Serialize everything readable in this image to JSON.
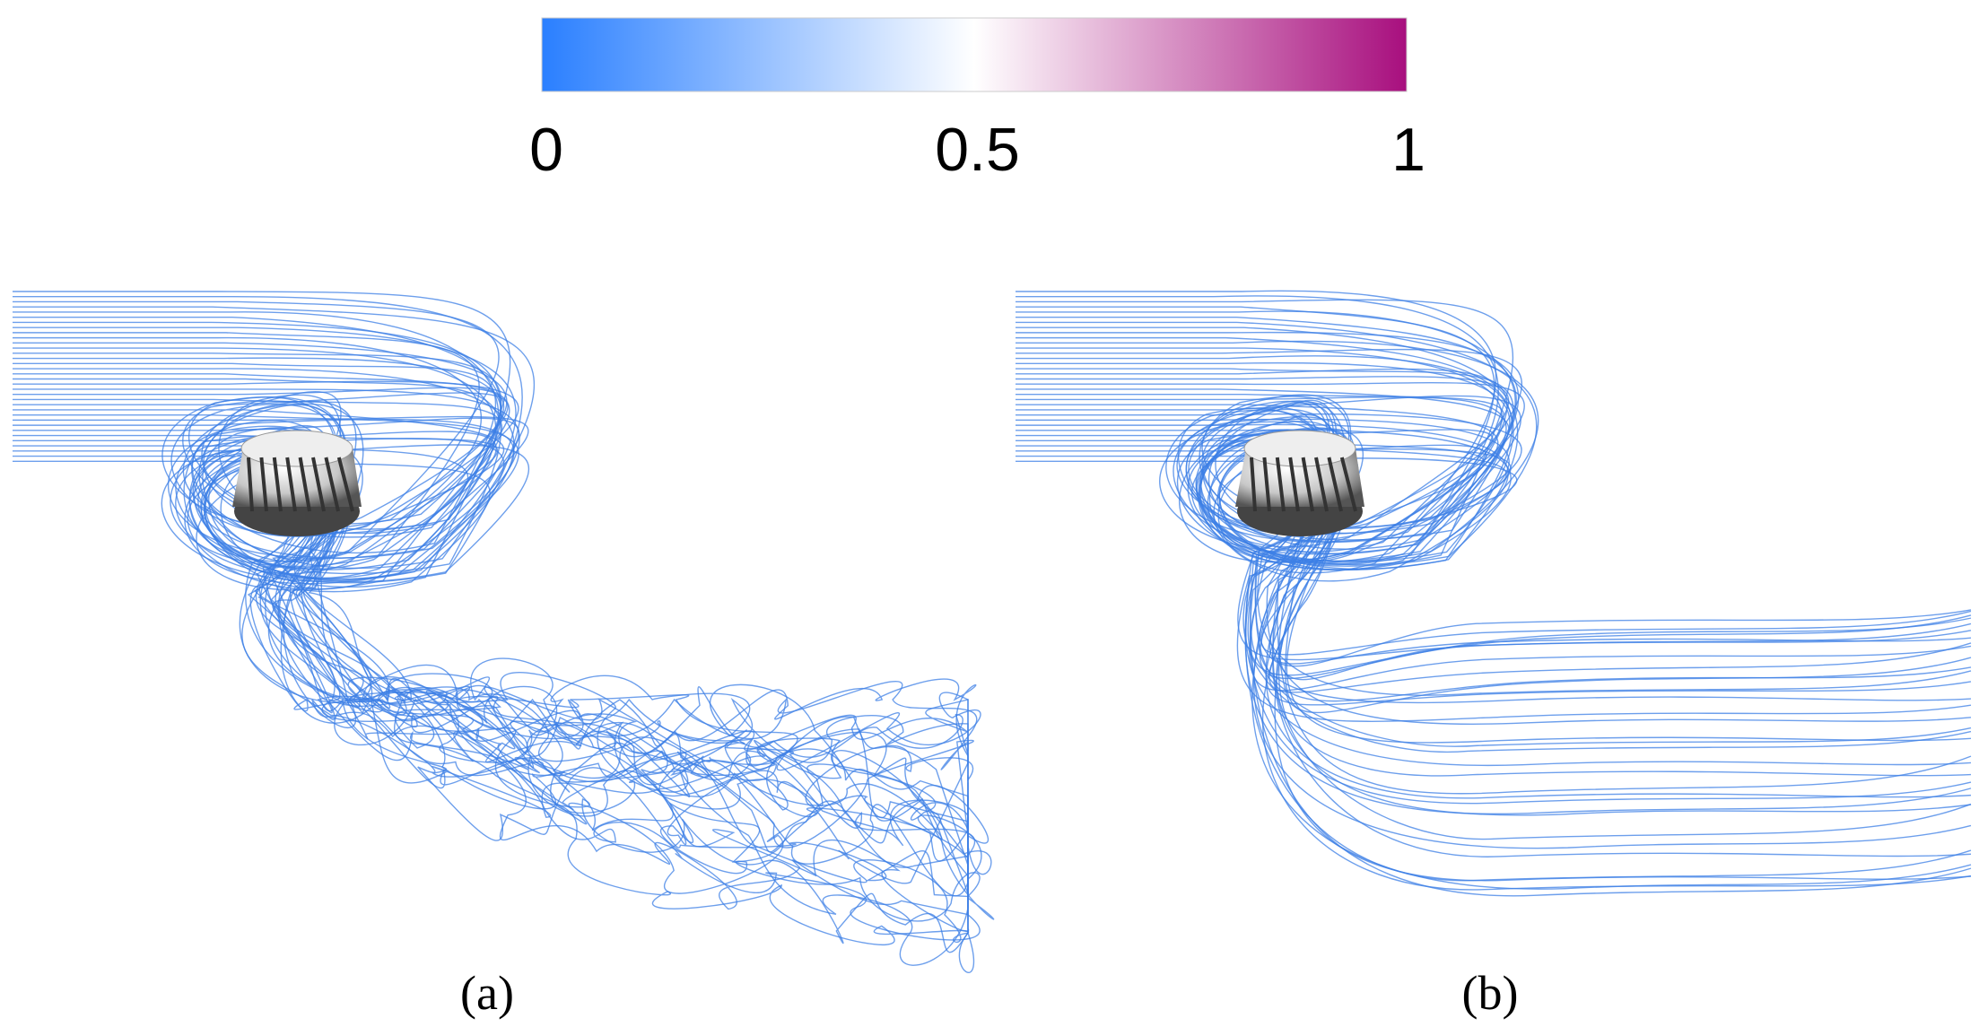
{
  "colorbar": {
    "range": [
      0,
      1
    ],
    "ticks": [
      0,
      0.5,
      1
    ],
    "colors": [
      "#2a7fff",
      "#ffffff",
      "#a80f7e"
    ]
  },
  "panels": [
    {
      "label": "(a)"
    },
    {
      "label": "(b)"
    }
  ]
}
